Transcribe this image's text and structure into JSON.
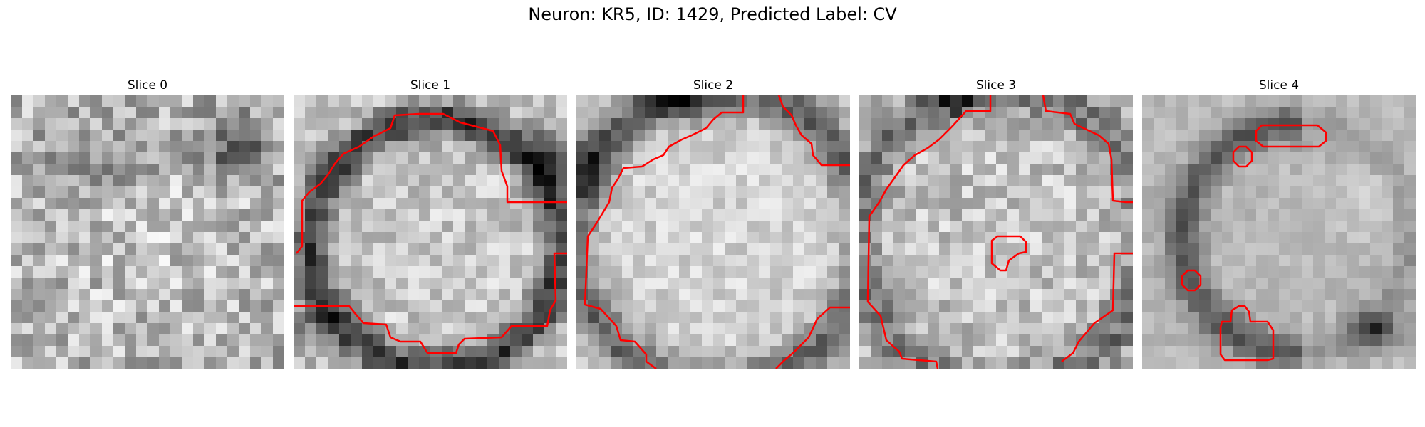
{
  "figure": {
    "title": "Neuron: KR5, ID: 1429, Predicted Label: CV"
  },
  "panels": [
    {
      "title": "Slice 0"
    },
    {
      "title": "Slice 1"
    },
    {
      "title": "Slice 2"
    },
    {
      "title": "Slice 3"
    },
    {
      "title": "Slice 4"
    }
  ],
  "colors": {
    "contour": "#ff0000",
    "colormap": "grayscale"
  }
}
